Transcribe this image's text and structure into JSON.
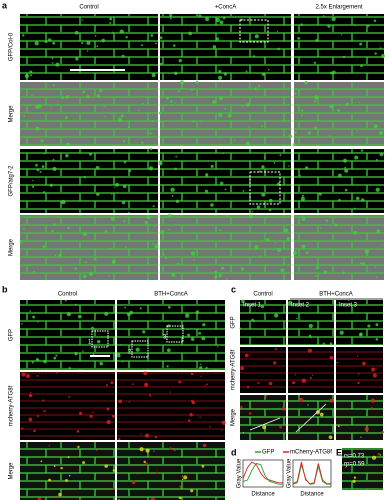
{
  "panel_a": {
    "label": "a",
    "columns": [
      "Control",
      "+ConcA",
      "2.5x Enlargement"
    ],
    "rows": [
      "GFP/Col-0",
      "Merge",
      "GFP/atg7-2",
      "Merge"
    ]
  },
  "panel_b": {
    "label": "b",
    "columns": [
      "Control",
      "BTH+ConcA"
    ],
    "rows": [
      "GFP",
      "mcherry-ATG8f",
      "Merge"
    ],
    "markers": [
      "1",
      "2",
      "3"
    ]
  },
  "panel_c": {
    "label": "c",
    "columns": [
      "Control",
      "BTH+ConcA"
    ],
    "insets": [
      "Inset 1",
      "Inset 2",
      "Inset 3"
    ],
    "rows": [
      "GFP",
      "mcherry-ATG8f",
      "Merge"
    ]
  },
  "panel_d": {
    "label": "d",
    "legend": [
      {
        "name": "GFP",
        "color": "#2ca02c"
      },
      {
        "name": "mCherry-ATG8f",
        "color": "#d62728"
      }
    ],
    "plots": [
      {
        "x_label": "Distance",
        "y_label": "Gray Value",
        "values": [
          [
            20,
            25,
            60,
            85,
            80,
            40,
            20,
            15,
            10,
            10
          ],
          [
            30,
            70,
            90,
            80,
            50,
            30,
            25,
            20,
            15,
            15
          ]
        ]
      },
      {
        "x_label": "Distance",
        "y_label": "Gray Value",
        "values": [
          [
            10,
            15,
            80,
            30,
            10,
            12,
            75,
            20,
            10,
            10
          ],
          [
            12,
            20,
            90,
            25,
            12,
            15,
            85,
            25,
            12,
            12
          ]
        ]
      }
    ]
  },
  "panel_e": {
    "label": "E",
    "stats": [
      "rs=0.73",
      "rp=0.59"
    ]
  }
}
